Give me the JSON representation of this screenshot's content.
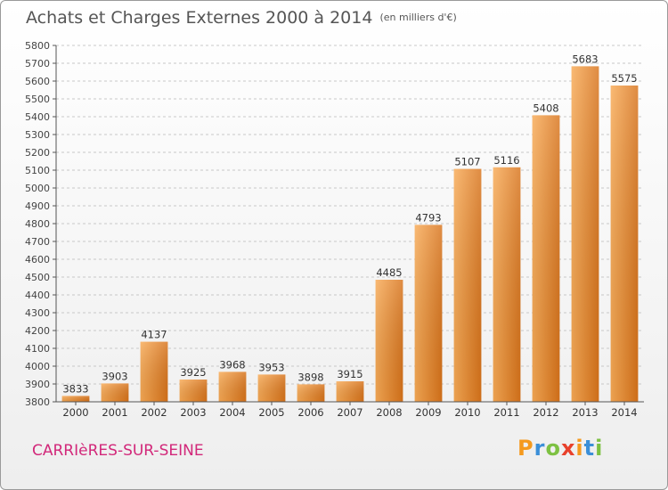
{
  "header": {
    "title": "Achats et Charges Externes 2000 à 2014",
    "unit": "(en milliers d'€)"
  },
  "footer": {
    "commune": "CARRIèRES-SUR-SEINE",
    "logo_letters": [
      "P",
      "r",
      "o",
      "x",
      "i",
      "t",
      "i"
    ],
    "logo_colors": [
      "#f59a1e",
      "#3b8fd8",
      "#7dc142",
      "#e8412c",
      "#f59a1e",
      "#3b8fd8",
      "#7dc142"
    ]
  },
  "colors": {
    "bar_light": "#f8aa55",
    "bar_dark": "#d8731a",
    "grid": "#c8c8c8",
    "axis": "#555555"
  },
  "chart_data": {
    "type": "bar",
    "title": "Achats et Charges Externes 2000 à 2014",
    "xlabel": "",
    "ylabel": "",
    "categories": [
      "2000",
      "2001",
      "2002",
      "2003",
      "2004",
      "2005",
      "2006",
      "2007",
      "2008",
      "2009",
      "2010",
      "2011",
      "2012",
      "2013",
      "2014"
    ],
    "values": [
      3833,
      3903,
      4137,
      3925,
      3968,
      3953,
      3898,
      3915,
      4485,
      4793,
      5107,
      5116,
      5408,
      5683,
      5575
    ],
    "ylim": [
      3800,
      5800
    ],
    "ytick_step": 100,
    "grid": true
  }
}
